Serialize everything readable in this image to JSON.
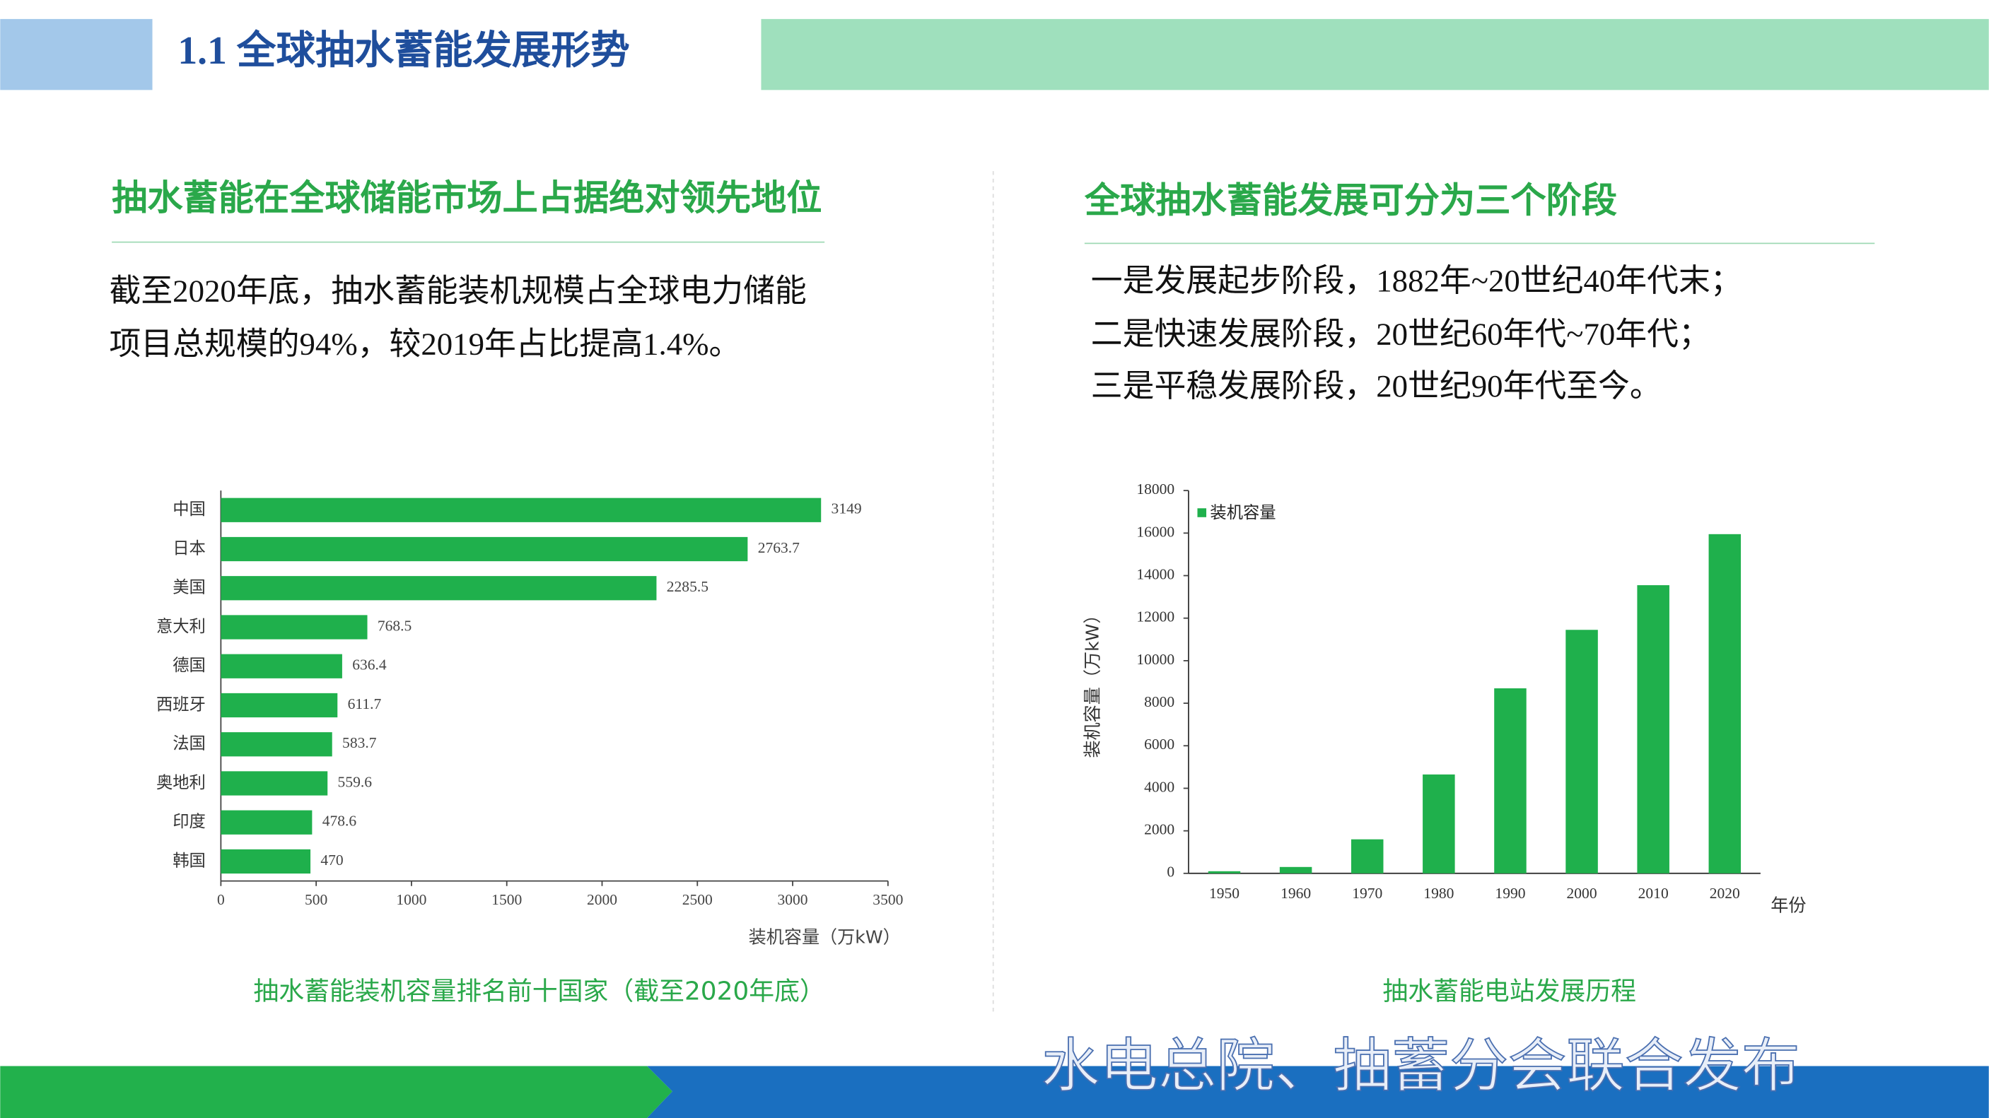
{
  "title": "1.1 全球抽水蓄能发展形势",
  "left": {
    "heading": "抽水蓄能在全球储能市场上占据绝对领先地位",
    "text": [
      "截至2020年底，抽水蓄能装机规模占全球电力储能",
      "项目总规模的94%，较2019年占比提高1.4%。"
    ]
  },
  "right": {
    "heading": "全球抽水蓄能发展可分为三个阶段",
    "text": [
      "一是发展起步阶段，1882年~20世纪40年代末；",
      "二是快速发展阶段，20世纪60年代~70年代；",
      "三是平稳发展阶段，20世纪90年代至今。"
    ]
  },
  "footer": "水电总院、抽蓄分会联合发布",
  "chart_data": [
    {
      "type": "bar",
      "orientation": "horizontal",
      "title": "抽水蓄能装机容量排名前十国家（截至2020年底）",
      "categories": [
        "中国",
        "日本",
        "美国",
        "意大利",
        "德国",
        "西班牙",
        "法国",
        "奥地利",
        "印度",
        "韩国"
      ],
      "values": [
        3149,
        2763.7,
        2285.5,
        768.5,
        636.4,
        611.7,
        583.7,
        559.6,
        478.6,
        470
      ],
      "color": "#1fb04c",
      "xlim": [
        0,
        3500
      ],
      "xticks": [
        0,
        500,
        1000,
        1500,
        2000,
        2500,
        3000,
        3500
      ],
      "x_label": "装机容量（万kW）"
    },
    {
      "type": "bar",
      "orientation": "vertical",
      "title": "抽水蓄能电站发展历程",
      "categories": [
        "1950",
        "1960",
        "1970",
        "1980",
        "1990",
        "2000",
        "2010",
        "2020"
      ],
      "series": [
        {
          "name": "装机容量",
          "color": "#1fb04c",
          "values": [
            100,
            300,
            1600,
            4650,
            8700,
            11450,
            13550,
            15950
          ]
        }
      ],
      "ylim": [
        0,
        18000
      ],
      "yticks": [
        0,
        2000,
        4000,
        6000,
        8000,
        10000,
        12000,
        14000,
        16000,
        18000
      ],
      "y_label": "装机容量（万kW）",
      "x_label": "年份",
      "legend": "upper left"
    }
  ]
}
